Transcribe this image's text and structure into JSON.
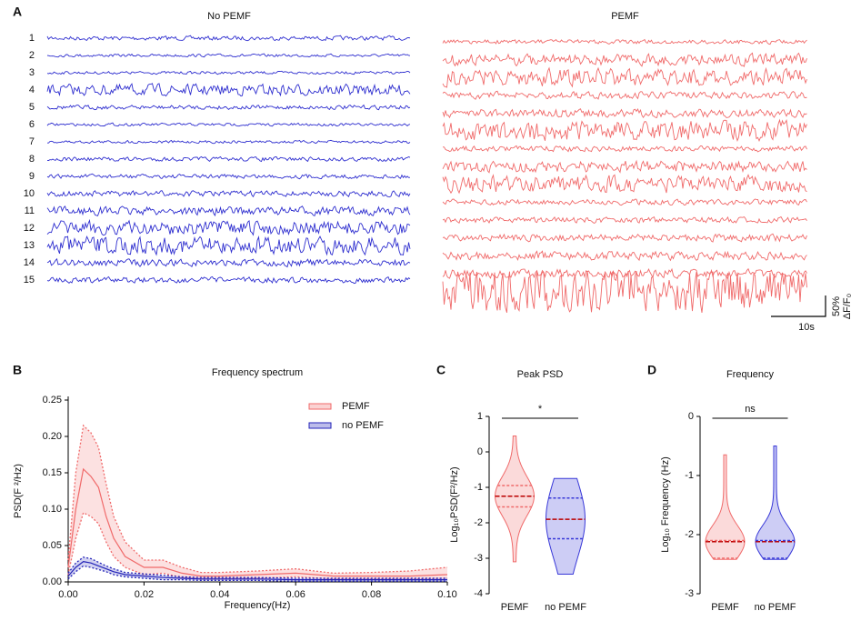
{
  "chart_data": [
    {
      "type": "traces",
      "panel": "A",
      "labels": [
        "1",
        "2",
        "3",
        "4",
        "5",
        "6",
        "7",
        "8",
        "9",
        "10",
        "11",
        "12",
        "13",
        "14",
        "15"
      ],
      "groups": [
        {
          "name": "No PEMF",
          "color": "#2e2ecf",
          "amplitudes": [
            3,
            2,
            2,
            8,
            3,
            2,
            2,
            3,
            3,
            4,
            6,
            10,
            12,
            5,
            4
          ]
        },
        {
          "name": "PEMF",
          "color": "#f06a6a",
          "amplitudes": [
            3,
            8,
            12,
            5,
            6,
            14,
            4,
            8,
            12,
            4,
            4,
            5,
            6,
            6,
            30
          ]
        }
      ],
      "scalebar": {
        "y_label": "50%",
        "y_unit": "ΔF/F₀",
        "x_label": "10s"
      }
    },
    {
      "type": "line",
      "panel": "B",
      "title": "Frequency spectrum",
      "x_label": "Frequency(Hz)",
      "y_label": "PSD(F ²/Hz)",
      "x": [
        0,
        0.002,
        0.004,
        0.006,
        0.008,
        0.01,
        0.012,
        0.015,
        0.02,
        0.025,
        0.03,
        0.035,
        0.04,
        0.05,
        0.06,
        0.07,
        0.08,
        0.09,
        0.1
      ],
      "xlim": [
        0,
        0.1
      ],
      "xticks": [
        {
          "value": 0,
          "label": "0.00"
        },
        {
          "value": 0.02,
          "label": "0.02"
        },
        {
          "value": 0.04,
          "label": "0.04"
        },
        {
          "value": 0.06,
          "label": "0.06"
        },
        {
          "value": 0.08,
          "label": "0.08"
        },
        {
          "value": 0.1,
          "label": "0.10"
        }
      ],
      "ylim": [
        0,
        0.25
      ],
      "yticks": [
        {
          "value": 0,
          "label": "0.00"
        },
        {
          "value": 0.05,
          "label": "0.05"
        },
        {
          "value": 0.1,
          "label": "0.10"
        },
        {
          "value": 0.15,
          "label": "0.15"
        },
        {
          "value": 0.2,
          "label": "0.20"
        },
        {
          "value": 0.25,
          "label": "0.25"
        }
      ],
      "series": [
        {
          "name": "PEMF",
          "color": "#f06a6a",
          "values": [
            0.02,
            0.1,
            0.155,
            0.145,
            0.13,
            0.09,
            0.06,
            0.035,
            0.02,
            0.02,
            0.012,
            0.008,
            0.008,
            0.01,
            0.012,
            0.008,
            0.008,
            0.008,
            0.01
          ],
          "upper": [
            0.03,
            0.15,
            0.215,
            0.205,
            0.185,
            0.135,
            0.09,
            0.055,
            0.03,
            0.03,
            0.02,
            0.013,
            0.013,
            0.015,
            0.018,
            0.012,
            0.013,
            0.015,
            0.02
          ],
          "lower": [
            0.01,
            0.06,
            0.095,
            0.09,
            0.08,
            0.055,
            0.035,
            0.02,
            0.01,
            0.012,
            0.006,
            0.004,
            0.004,
            0.005,
            0.007,
            0.004,
            0.004,
            0.004,
            0.005
          ]
        },
        {
          "name": "no PEMF",
          "color": "#2323b8",
          "values": [
            0.008,
            0.02,
            0.028,
            0.026,
            0.022,
            0.018,
            0.014,
            0.01,
            0.008,
            0.006,
            0.005,
            0.004,
            0.004,
            0.004,
            0.003,
            0.003,
            0.003,
            0.003,
            0.003
          ],
          "upper": [
            0.012,
            0.026,
            0.034,
            0.032,
            0.027,
            0.022,
            0.018,
            0.013,
            0.011,
            0.009,
            0.007,
            0.006,
            0.006,
            0.006,
            0.005,
            0.005,
            0.005,
            0.005,
            0.005
          ],
          "lower": [
            0.004,
            0.014,
            0.022,
            0.02,
            0.017,
            0.014,
            0.01,
            0.007,
            0.005,
            0.003,
            0.003,
            0.002,
            0.002,
            0.002,
            0.001,
            0.001,
            0.001,
            0.001,
            0.001
          ]
        }
      ]
    },
    {
      "type": "violin",
      "panel": "C",
      "title": "Peak PSD",
      "y_label": "Log₁₀PSD(F²/Hz)",
      "significance": "*",
      "categories": [
        "PEMF",
        "no PEMF"
      ],
      "colors": [
        "#f06a6a",
        "#3838d8"
      ],
      "ylim": [
        -4,
        1
      ],
      "yticks": [
        -4,
        -3,
        -2,
        -1,
        0,
        1
      ],
      "min": [
        -3.1,
        -3.45
      ],
      "q1": [
        -1.55,
        -2.45
      ],
      "median": [
        -1.25,
        -1.9
      ],
      "q3": [
        -0.95,
        -1.3
      ],
      "max": [
        0.45,
        -0.75
      ]
    },
    {
      "type": "violin",
      "panel": "D",
      "title": "Frequency",
      "y_label": "Log₁₀ Frequency (Hz)",
      "significance": "ns",
      "categories": [
        "PEMF",
        "no PEMF"
      ],
      "colors": [
        "#f06a6a",
        "#3838d8"
      ],
      "ylim": [
        -3,
        0
      ],
      "yticks": [
        -3,
        -2,
        -1,
        0
      ],
      "min": [
        -2.42,
        -2.42
      ],
      "q1": [
        -2.4,
        -2.4
      ],
      "median": [
        -2.12,
        -2.12
      ],
      "q3": [
        -2.1,
        -2.1
      ],
      "max": [
        -0.65,
        -0.5
      ]
    }
  ]
}
